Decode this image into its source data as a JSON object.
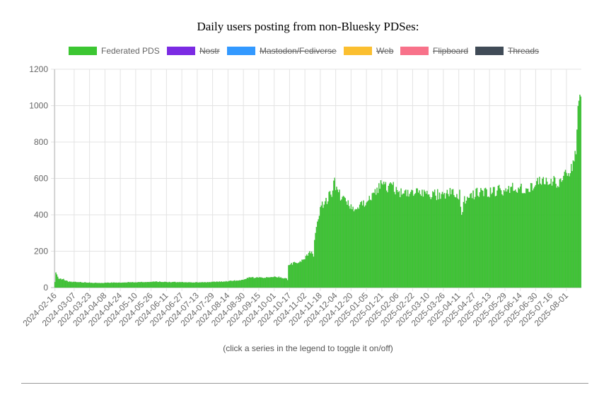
{
  "page": {
    "hint": "(click a series in the legend to toggle it on/off)"
  },
  "chart_data": {
    "type": "bar",
    "title": "Daily users posting from non-Bluesky PDSes:",
    "xlabel": "",
    "ylabel": "",
    "ylim": [
      0,
      1200
    ],
    "yticks": [
      "0",
      "200",
      "400",
      "600",
      "800",
      "1000",
      "1200"
    ],
    "grid": true,
    "legend_position": "top",
    "x_tick_labels": [
      "2024-02-16",
      "2024-03-07",
      "2024-03-23",
      "2024-04-08",
      "2024-04-24",
      "2024-05-10",
      "2024-05-26",
      "2024-06-11",
      "2024-06-27",
      "2024-07-13",
      "2024-07-29",
      "2024-08-14",
      "2024-08-30",
      "2024-09-15",
      "2024-10-01",
      "2024-10-17",
      "2024-11-02",
      "2024-11-18",
      "2024-12-04",
      "2024-12-20",
      "2025-01-05",
      "2025-01-21",
      "2025-02-06",
      "2025-02-22",
      "2025-03-10",
      "2025-03-26",
      "2025-04-11",
      "2025-04-27",
      "2025-05-13",
      "2025-05-29",
      "2025-06-14",
      "2025-06-30",
      "2025-07-16",
      "2025-08-01"
    ],
    "start_date": "2024-02-16",
    "end_date": "2025-08-16",
    "series": [
      {
        "name": "Federated PDS",
        "color": "#3cc632",
        "visible": true,
        "keyframes": [
          [
            "2024-02-16",
            30
          ],
          [
            "2024-02-17",
            80
          ],
          [
            "2024-02-20",
            50
          ],
          [
            "2024-02-25",
            45
          ],
          [
            "2024-03-01",
            32
          ],
          [
            "2024-04-01",
            25
          ],
          [
            "2024-05-01",
            28
          ],
          [
            "2024-06-01",
            32
          ],
          [
            "2024-06-15",
            30
          ],
          [
            "2024-07-15",
            28
          ],
          [
            "2024-08-10",
            33
          ],
          [
            "2024-08-28",
            40
          ],
          [
            "2024-09-05",
            55
          ],
          [
            "2024-09-20",
            55
          ],
          [
            "2024-10-05",
            58
          ],
          [
            "2024-10-14",
            48
          ],
          [
            "2024-10-15",
            42
          ],
          [
            "2024-10-16",
            130
          ],
          [
            "2024-10-25",
            135
          ],
          [
            "2024-11-02",
            160
          ],
          [
            "2024-11-08",
            195
          ],
          [
            "2024-11-11",
            175
          ],
          [
            "2024-11-12",
            270
          ],
          [
            "2024-11-15",
            360
          ],
          [
            "2024-11-18",
            440
          ],
          [
            "2024-11-25",
            480
          ],
          [
            "2024-11-30",
            530
          ],
          [
            "2024-12-02",
            590
          ],
          [
            "2024-12-06",
            530
          ],
          [
            "2024-12-15",
            460
          ],
          [
            "2024-12-25",
            430
          ],
          [
            "2025-01-05",
            470
          ],
          [
            "2025-01-20",
            560
          ],
          [
            "2025-02-01",
            550
          ],
          [
            "2025-02-15",
            510
          ],
          [
            "2025-03-01",
            515
          ],
          [
            "2025-03-20",
            510
          ],
          [
            "2025-04-05",
            520
          ],
          [
            "2025-04-12",
            510
          ],
          [
            "2025-04-14",
            395
          ],
          [
            "2025-04-16",
            470
          ],
          [
            "2025-04-22",
            500
          ],
          [
            "2025-05-01",
            520
          ],
          [
            "2025-05-20",
            530
          ],
          [
            "2025-06-05",
            545
          ],
          [
            "2025-06-25",
            550
          ],
          [
            "2025-07-05",
            580
          ],
          [
            "2025-07-15",
            590
          ],
          [
            "2025-07-25",
            575
          ],
          [
            "2025-08-02",
            630
          ],
          [
            "2025-08-08",
            680
          ],
          [
            "2025-08-11",
            760
          ],
          [
            "2025-08-13",
            960
          ],
          [
            "2025-08-15",
            1010
          ],
          [
            "2025-08-16",
            995
          ]
        ]
      },
      {
        "name": "Nostr",
        "color": "#7b2be3",
        "visible": false
      },
      {
        "name": "Mastodon/Fediverse",
        "color": "#3399ff",
        "visible": false
      },
      {
        "name": "Web",
        "color": "#fbbf30",
        "visible": false
      },
      {
        "name": "Flipboard",
        "color": "#f8728a",
        "visible": false
      },
      {
        "name": "Threads",
        "color": "#404b57",
        "visible": false
      }
    ]
  }
}
